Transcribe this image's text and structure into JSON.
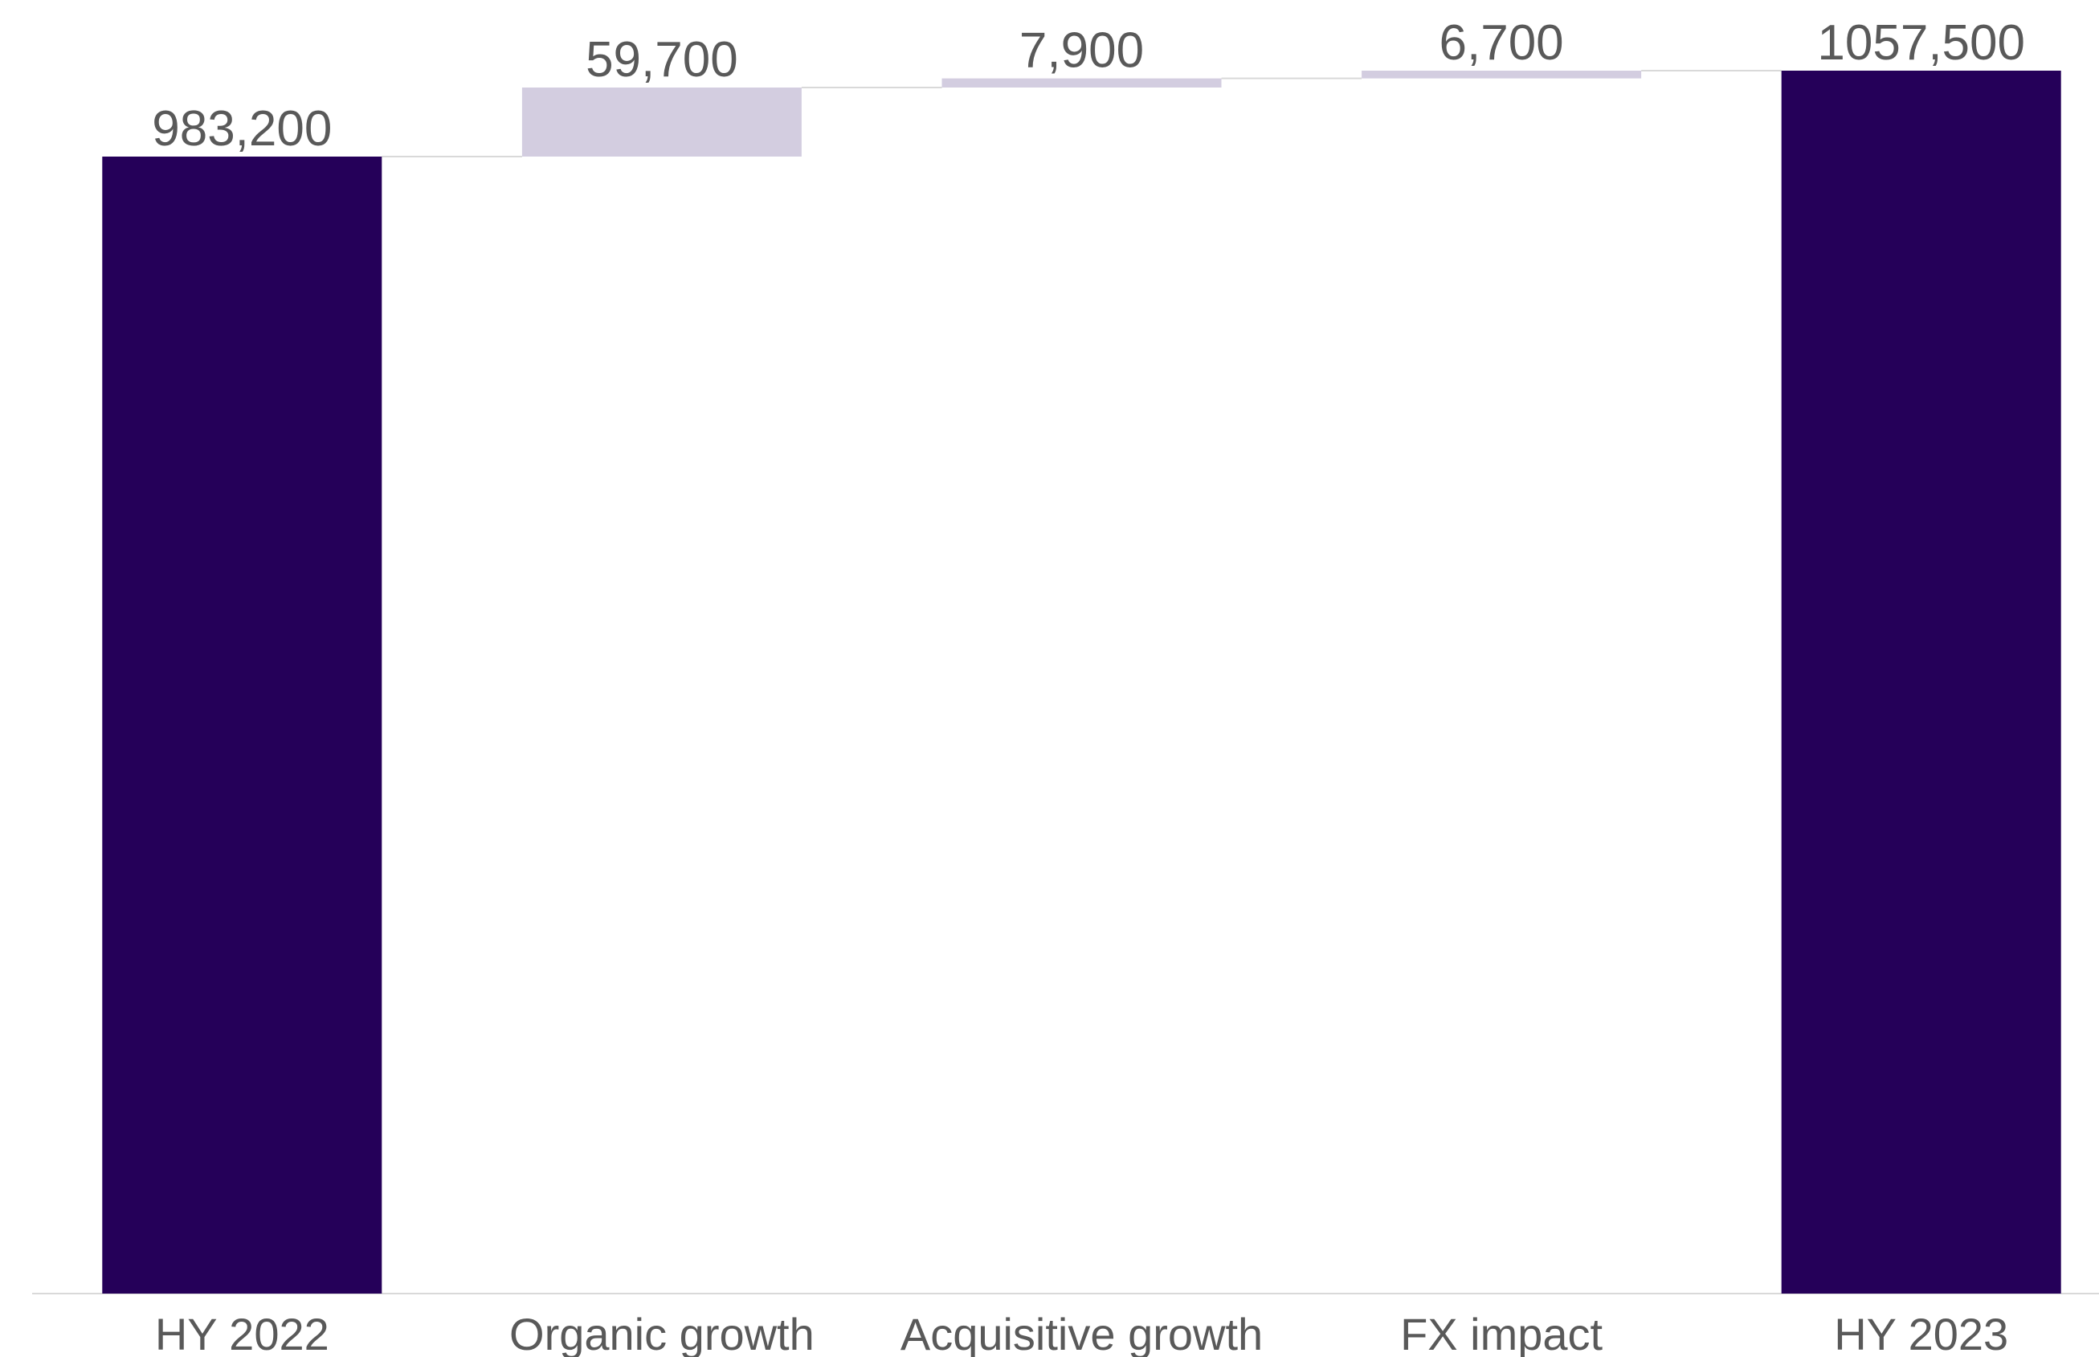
{
  "chart_data": {
    "type": "bar",
    "subtype": "waterfall",
    "categories": [
      "HY 2022",
      "Organic growth",
      "Acquisitive growth",
      "FX impact",
      "HY 2023"
    ],
    "series": [
      {
        "values": [
          983200,
          59700,
          7900,
          6700,
          1057500
        ],
        "kinds": [
          "total",
          "delta",
          "delta",
          "delta",
          "total"
        ]
      }
    ],
    "data_labels": [
      "983,200",
      "59,700",
      "7,900",
      "6,700",
      "1057,500"
    ],
    "title": "",
    "xlabel": "",
    "ylabel": "",
    "ylim": [
      0,
      1057500
    ],
    "y_axis_visible": false,
    "grid": false,
    "legend": "none",
    "colors": {
      "total": "#250059",
      "delta": "#d3cde0",
      "connector": "#d9d9d9",
      "axis": "#d9d9d9",
      "text": "#595959"
    }
  }
}
